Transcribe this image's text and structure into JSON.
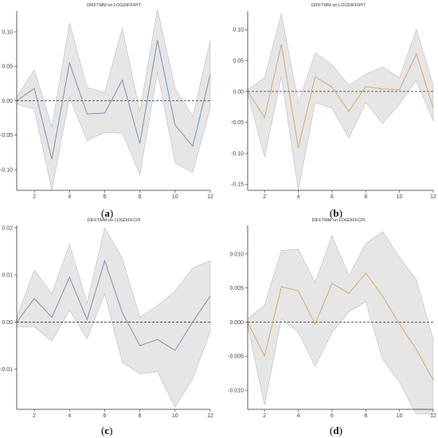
{
  "colors": {
    "band_fill": "#e6e6e6",
    "band_stroke": "#bdbdbd",
    "series_blue": "#7a93ab",
    "series_orange": "#d4a96a",
    "zero_line": "#333333",
    "axis": "#333333"
  },
  "chart_data": [
    {
      "type": "line",
      "title": "DIFFTMM on LOGDIFFIPIT",
      "caption": "a",
      "xlabel": "",
      "ylabel": "",
      "x": [
        1,
        2,
        3,
        4,
        5,
        6,
        7,
        8,
        9,
        10,
        11,
        12
      ],
      "xlim": [
        1,
        12
      ],
      "ylim": [
        -0.13,
        0.13
      ],
      "x_ticks": [
        2,
        4,
        6,
        8,
        10,
        12
      ],
      "y_ticks": [
        -0.1,
        -0.05,
        0.0,
        0.05,
        0.1
      ],
      "y_tick_labels": [
        "-0.10",
        "-0.05",
        "0.00",
        "0.05",
        "0.10"
      ],
      "x_tick_labels": [
        "2",
        "4",
        "6",
        "8",
        "10",
        "12"
      ],
      "zero_line": true,
      "series": [
        {
          "role": "estimate",
          "color": "blue",
          "values": [
            0.0,
            0.018,
            -0.085,
            0.055,
            -0.019,
            -0.018,
            0.03,
            -0.062,
            0.088,
            -0.035,
            -0.066,
            0.038
          ]
        },
        {
          "role": "upper",
          "values": [
            0.005,
            0.045,
            -0.038,
            0.113,
            0.019,
            0.012,
            0.105,
            -0.016,
            0.133,
            0.018,
            -0.023,
            0.087
          ]
        },
        {
          "role": "lower",
          "values": [
            -0.005,
            -0.012,
            -0.13,
            0.005,
            -0.058,
            -0.046,
            -0.047,
            -0.107,
            0.042,
            -0.09,
            -0.104,
            -0.011
          ]
        }
      ]
    },
    {
      "type": "line",
      "title": "DIFFTMM on LOGDIFFIPIT",
      "caption": "b",
      "xlabel": "",
      "ylabel": "",
      "x": [
        1,
        2,
        3,
        4,
        5,
        6,
        7,
        8,
        9,
        10,
        11,
        12
      ],
      "xlim": [
        1,
        12
      ],
      "ylim": [
        -0.16,
        0.13
      ],
      "x_ticks": [
        2,
        4,
        6,
        8,
        10,
        12
      ],
      "y_ticks": [
        -0.15,
        -0.1,
        -0.05,
        0.0,
        0.05,
        0.1
      ],
      "y_tick_labels": [
        "-0.15",
        "-0.10",
        "-0.05",
        "0.00",
        "0.05",
        "0.10"
      ],
      "x_tick_labels": [
        "2",
        "4",
        "6",
        "8",
        "10",
        "12"
      ],
      "zero_line": true,
      "series": [
        {
          "role": "estimate",
          "color": "orange",
          "values": [
            0.0,
            -0.042,
            0.076,
            -0.091,
            0.024,
            0.007,
            -0.032,
            0.008,
            0.004,
            0.003,
            0.061,
            -0.027
          ]
        },
        {
          "role": "upper",
          "values": [
            0.003,
            0.022,
            0.126,
            -0.018,
            0.062,
            0.043,
            0.01,
            0.028,
            0.04,
            0.022,
            0.101,
            0.01
          ]
        },
        {
          "role": "lower",
          "values": [
            -0.003,
            -0.106,
            0.024,
            -0.16,
            -0.018,
            -0.027,
            -0.075,
            -0.018,
            -0.052,
            -0.02,
            0.018,
            -0.048
          ]
        }
      ]
    },
    {
      "type": "line",
      "title": "DIFFTMM on LOGDIFFCPI",
      "caption": "c",
      "xlabel": "",
      "ylabel": "",
      "x": [
        1,
        2,
        3,
        4,
        5,
        6,
        7,
        8,
        9,
        10,
        11,
        12
      ],
      "xlim": [
        1,
        12
      ],
      "ylim": [
        -0.0185,
        0.0205
      ],
      "x_ticks": [
        2,
        4,
        6,
        8,
        10,
        12
      ],
      "y_ticks": [
        -0.01,
        0.0,
        0.01,
        0.02
      ],
      "y_tick_labels": [
        "-0.01",
        "0.00",
        "0.01",
        "0.02"
      ],
      "x_tick_labels": [
        "2",
        "4",
        "6",
        "8",
        "10",
        "12"
      ],
      "zero_line": true,
      "series": [
        {
          "role": "estimate",
          "color": "blue",
          "values": [
            0.0,
            0.005,
            0.001,
            0.0095,
            0.0005,
            0.013,
            0.002,
            -0.005,
            -0.0037,
            -0.006,
            -0.0,
            0.0055
          ]
        },
        {
          "role": "upper",
          "values": [
            0.001,
            0.011,
            0.006,
            0.0165,
            0.004,
            0.02,
            0.0135,
            0.001,
            0.0035,
            0.0065,
            0.0115,
            0.013
          ]
        },
        {
          "role": "lower",
          "values": [
            -0.001,
            -0.001,
            -0.004,
            0.0025,
            -0.0035,
            0.006,
            -0.0085,
            -0.011,
            -0.0105,
            -0.018,
            -0.012,
            -0.002
          ]
        }
      ]
    },
    {
      "type": "line",
      "title": "DIFFTMM on LOGDIFFCPI",
      "caption": "d",
      "xlabel": "",
      "ylabel": "",
      "x": [
        1,
        2,
        3,
        4,
        5,
        6,
        7,
        8,
        9,
        10,
        11,
        12
      ],
      "xlim": [
        1,
        12
      ],
      "ylim": [
        -0.0128,
        0.0142
      ],
      "x_ticks": [
        2,
        4,
        6,
        8,
        10,
        12
      ],
      "y_ticks": [
        -0.01,
        -0.005,
        0.0,
        0.005,
        0.01
      ],
      "y_tick_labels": [
        "-0.010",
        "-0.005",
        "0.000",
        "0.005",
        "0.010"
      ],
      "x_tick_labels": [
        "2",
        "4",
        "6",
        "8",
        "10",
        "12"
      ],
      "zero_line": true,
      "series": [
        {
          "role": "estimate",
          "color": "orange",
          "values": [
            0.0,
            -0.005,
            0.0052,
            0.0046,
            -0.0003,
            0.0057,
            0.0042,
            0.0072,
            0.0038,
            -0.0003,
            -0.004,
            -0.0085
          ]
        },
        {
          "role": "upper",
          "values": [
            0.0005,
            0.0025,
            0.0105,
            0.0107,
            0.0058,
            0.0127,
            0.0068,
            0.0115,
            0.0133,
            0.0095,
            0.0062,
            -0.0025
          ]
        },
        {
          "role": "lower",
          "values": [
            -0.0005,
            -0.0122,
            0.0005,
            -0.0015,
            -0.0065,
            -0.0015,
            0.0015,
            0.003,
            -0.0055,
            -0.0088,
            -0.0135,
            -0.0135
          ]
        }
      ]
    }
  ]
}
